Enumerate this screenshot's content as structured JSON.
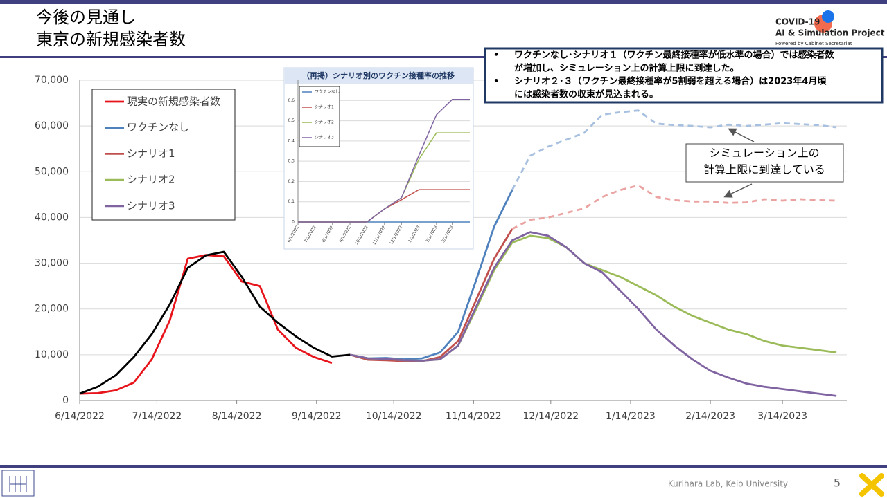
{
  "header": {
    "title": [
      "今後の見通し",
      "東京の新規感染者数"
    ]
  },
  "logo": {
    "name": "COVID-19",
    "project": "AI & Simulation Project",
    "sponsor": "Powered by Cabinet Secretariat"
  },
  "notes": [
    [
      "ワクチンなし･シナリオ１（ワクチン最終接種率が低水準の場合）では感染者数",
      "が増加し、シミュレーション上の計算上限に到達した。"
    ],
    [
      "シナリオ２･３（ワクチン最終接種率が5割弱を超える場合）は2023年4月頃",
      "には感染者数の収束が見込まれる。"
    ]
  ],
  "annotation": [
    "シミュレーション上の",
    "計算上限に到達している"
  ],
  "footer": {
    "lab": "Kurihara Lab, Keio University",
    "page": "5"
  },
  "chart_data": [
    {
      "type": "line",
      "legend": "upper left",
      "grid": true,
      "x": [
        "2022-06-14",
        "2022-06-21",
        "2022-06-28",
        "2022-07-05",
        "2022-07-12",
        "2022-07-19",
        "2022-07-26",
        "2022-08-02",
        "2022-08-09",
        "2022-08-16",
        "2022-08-23",
        "2022-08-30",
        "2022-09-06",
        "2022-09-13",
        "2022-09-20",
        "2022-09-27",
        "2022-10-04",
        "2022-10-11",
        "2022-10-18",
        "2022-10-25",
        "2022-11-01",
        "2022-11-08",
        "2022-11-15",
        "2022-11-22",
        "2022-11-29",
        "2022-12-06",
        "2022-12-13",
        "2022-12-20",
        "2022-12-27",
        "2023-01-03",
        "2023-01-10",
        "2023-01-17",
        "2023-01-24",
        "2023-01-31",
        "2023-02-07",
        "2023-02-14",
        "2023-02-21",
        "2023-02-28",
        "2023-03-07",
        "2023-03-14",
        "2023-03-21",
        "2023-03-28",
        "2023-04-04"
      ],
      "xlim": [
        "2022-06-14",
        "2023-04-08"
      ],
      "xticks": [
        {
          "value": "2022-06-14",
          "label": "6/14/2022"
        },
        {
          "value": "2022-07-14",
          "label": "7/14/2022"
        },
        {
          "value": "2022-08-14",
          "label": "8/14/2022"
        },
        {
          "value": "2022-09-14",
          "label": "9/14/2022"
        },
        {
          "value": "2022-10-14",
          "label": "10/14/2022"
        },
        {
          "value": "2022-11-14",
          "label": "11/14/2022"
        },
        {
          "value": "2022-12-14",
          "label": "12/14/2022"
        },
        {
          "value": "2023-01-14",
          "label": "1/14/2023"
        },
        {
          "value": "2023-02-14",
          "label": "2/14/2023"
        },
        {
          "value": "2023-03-14",
          "label": "3/14/2023"
        }
      ],
      "ylim": [
        0,
        70000
      ],
      "yticks": [
        0,
        {
          "value": 10000,
          "label": "10,000"
        },
        {
          "value": 20000,
          "label": "20,000"
        },
        {
          "value": 30000,
          "label": "30,000"
        },
        {
          "value": 40000,
          "label": "40,000"
        },
        {
          "value": 50000,
          "label": "50,000"
        },
        {
          "value": 60000,
          "label": "60,000"
        },
        {
          "value": 70000,
          "label": "70,000"
        }
      ],
      "series": [
        {
          "name": "現実の新規感染者数",
          "color": "#e8141b",
          "values": [
            1500,
            1600,
            2200,
            3900,
            9000,
            17500,
            31000,
            31800,
            31500,
            26000,
            25000,
            15500,
            11500,
            9500,
            8200,
            null,
            null,
            null,
            null,
            null,
            null,
            null,
            null,
            null,
            null,
            null,
            null,
            null,
            null,
            null,
            null,
            null,
            null,
            null,
            null,
            null,
            null,
            null,
            null,
            null,
            null,
            null,
            null
          ]
        },
        {
          "name": "ワクチンなし",
          "color": "#4f81bd",
          "values": [
            null,
            null,
            null,
            null,
            null,
            null,
            null,
            null,
            null,
            null,
            null,
            null,
            null,
            null,
            null,
            10000,
            9200,
            9300,
            9000,
            9200,
            10500,
            15000,
            26300,
            38000,
            46000,
            null,
            null,
            null,
            null,
            null,
            null,
            null,
            null,
            null,
            null,
            null,
            null,
            null,
            null,
            null,
            null,
            null,
            null
          ]
        },
        {
          "name": "シナリオ1",
          "color": "#c0504d",
          "values": [
            null,
            null,
            null,
            null,
            null,
            null,
            null,
            null,
            null,
            null,
            null,
            null,
            null,
            null,
            null,
            10000,
            8900,
            8800,
            8600,
            8600,
            9500,
            13000,
            22000,
            31000,
            37500,
            null,
            null,
            null,
            null,
            null,
            null,
            null,
            null,
            null,
            null,
            null,
            null,
            null,
            null,
            null,
            null,
            null,
            null
          ]
        },
        {
          "name": "シナリオ2",
          "color": "#9bbb59",
          "values": [
            null,
            null,
            null,
            null,
            null,
            null,
            null,
            null,
            null,
            null,
            null,
            null,
            null,
            null,
            null,
            10000,
            9200,
            9100,
            8800,
            8700,
            9000,
            12000,
            20000,
            28500,
            34500,
            36000,
            35500,
            33500,
            30000,
            28500,
            27000,
            25000,
            23000,
            20500,
            18500,
            17000,
            15500,
            14500,
            13000,
            12000,
            11500,
            11000,
            10500
          ]
        },
        {
          "name": "シナリオ3",
          "color": "#8064a2",
          "values": [
            null,
            null,
            null,
            null,
            null,
            null,
            null,
            null,
            null,
            null,
            null,
            null,
            null,
            null,
            null,
            10000,
            9200,
            9100,
            8800,
            8700,
            9000,
            12000,
            20500,
            29000,
            35000,
            36800,
            36000,
            33500,
            30000,
            28000,
            24000,
            20000,
            15500,
            12000,
            9000,
            6500,
            5000,
            3700,
            3000,
            2500,
            2000,
            1500,
            1000
          ]
        },
        {
          "color": "#000000",
          "values": [
            1500,
            3000,
            5500,
            9500,
            14500,
            21000,
            29000,
            31700,
            32500,
            27000,
            20500,
            17000,
            14000,
            11500,
            9600,
            10000,
            null,
            null,
            null,
            null,
            null,
            null,
            null,
            null,
            null,
            null,
            null,
            null,
            null,
            null,
            null,
            null,
            null,
            null,
            null,
            null,
            null,
            null,
            null,
            null,
            null,
            null,
            null
          ]
        },
        {
          "color": "#a8c0e0",
          "dashed": true,
          "values": [
            null,
            null,
            null,
            null,
            null,
            null,
            null,
            null,
            null,
            null,
            null,
            null,
            null,
            null,
            null,
            null,
            null,
            null,
            null,
            null,
            null,
            null,
            null,
            null,
            46000,
            53500,
            55500,
            57000,
            58500,
            62500,
            63000,
            63400,
            60500,
            60200,
            60000,
            59700,
            60300,
            60000,
            60300,
            60600,
            60400,
            60200,
            59700
          ]
        },
        {
          "color": "#eaa3a1",
          "dashed": true,
          "values": [
            null,
            null,
            null,
            null,
            null,
            null,
            null,
            null,
            null,
            null,
            null,
            null,
            null,
            null,
            null,
            null,
            null,
            null,
            null,
            null,
            null,
            null,
            null,
            null,
            37500,
            39500,
            40000,
            41000,
            42000,
            44500,
            46000,
            47000,
            44500,
            43800,
            43500,
            43500,
            43200,
            43300,
            44000,
            43700,
            44000,
            43800,
            43700
          ]
        }
      ]
    },
    {
      "type": "line",
      "title": "（再掲）シナリオ別のワクチン接種率の推移",
      "legend": "upper left",
      "grid": true,
      "x": [
        "2022-06-01",
        "2022-07-01",
        "2022-08-01",
        "2022-09-01",
        "2022-10-01",
        "2022-11-01",
        "2022-12-01",
        "2023-01-01",
        "2023-02-01",
        "2023-03-01",
        "2023-04-01"
      ],
      "xlim": [
        "2022-06-01",
        "2023-04-01"
      ],
      "xticks": [
        {
          "value": "2022-06-01",
          "label": "6/1/2022"
        },
        {
          "value": "2022-07-01",
          "label": "7/1/2022"
        },
        {
          "value": "2022-08-01",
          "label": "8/1/2022"
        },
        {
          "value": "2022-09-01",
          "label": "9/1/2022"
        },
        {
          "value": "2022-10-01",
          "label": "10/1/2022"
        },
        {
          "value": "2022-11-01",
          "label": "11/1/2022"
        },
        {
          "value": "2022-12-01",
          "label": "12/1/2022"
        },
        {
          "value": "2023-01-01",
          "label": "1/1/2023"
        },
        {
          "value": "2023-02-01",
          "label": "2/1/2023"
        },
        {
          "value": "2023-03-01",
          "label": "3/1/2023"
        }
      ],
      "ylim": [
        0,
        0.7
      ],
      "yticks": [
        0,
        0.1,
        0.2,
        0.3,
        0.4,
        0.5,
        0.6
      ],
      "series": [
        {
          "name": "ワクチンなし",
          "color": "#4f81bd",
          "values": [
            0,
            0,
            0,
            0,
            0,
            0,
            0,
            0,
            0,
            0,
            0
          ]
        },
        {
          "name": "シナリオ1",
          "color": "#c0504d",
          "values": [
            0,
            0,
            0,
            0,
            0,
            0.065,
            0.11,
            0.16,
            0.16,
            0.16,
            0.16
          ]
        },
        {
          "name": "シナリオ2",
          "color": "#9bbb59",
          "values": [
            0,
            0,
            0,
            0,
            0,
            0.065,
            0.12,
            0.31,
            0.44,
            0.44,
            0.44
          ]
        },
        {
          "name": "シナリオ3",
          "color": "#8064a2",
          "values": [
            0,
            0,
            0,
            0,
            0,
            0.065,
            0.12,
            0.33,
            0.53,
            0.605,
            0.605
          ]
        }
      ]
    }
  ]
}
